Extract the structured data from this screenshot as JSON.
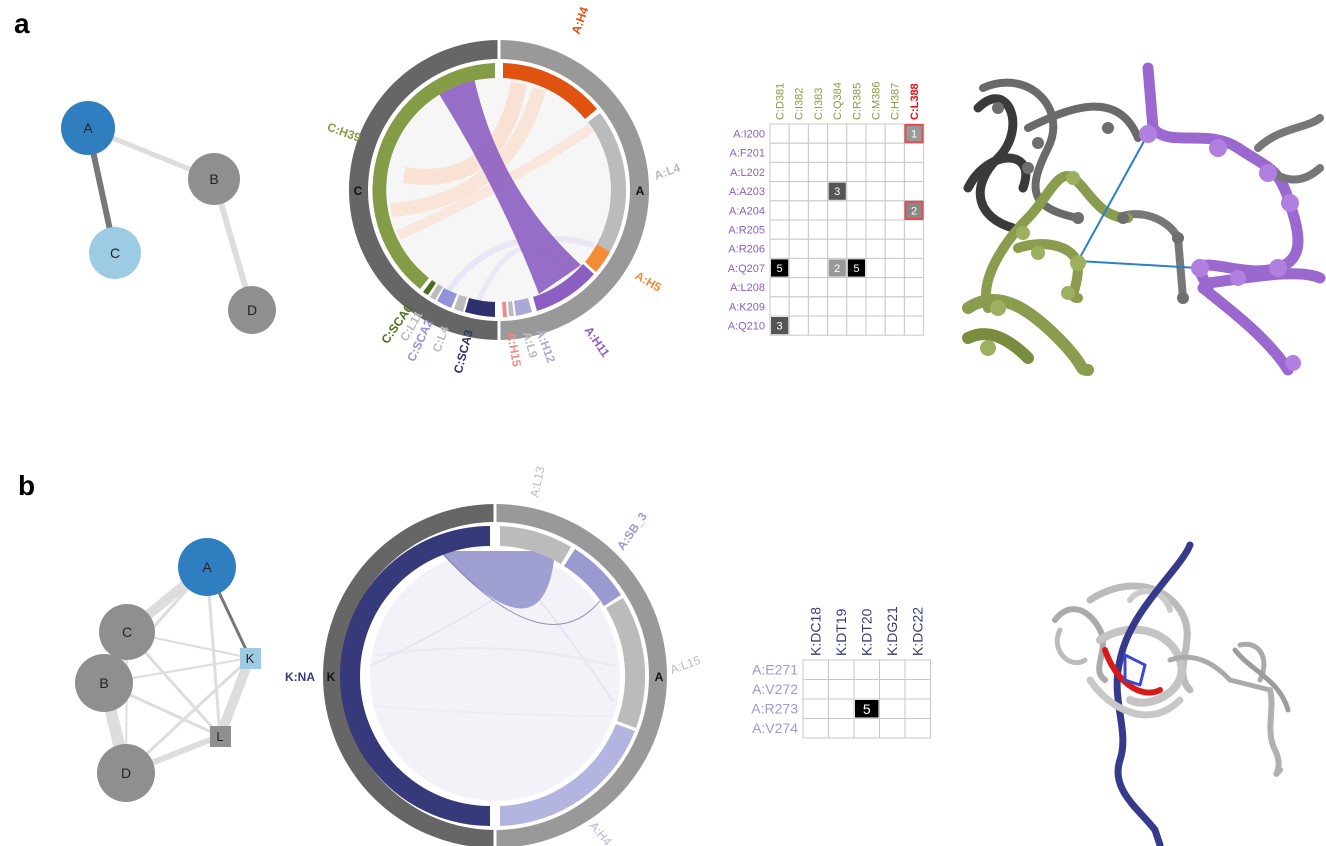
{
  "panels": [
    {
      "label": "a",
      "network": {
        "nodes": [
          {
            "id": "A",
            "color": "#2f7fc0"
          },
          {
            "id": "B",
            "color": "#8f8f8f"
          },
          {
            "id": "C",
            "color": "#9ecbe4"
          },
          {
            "id": "D",
            "color": "#8f8f8f"
          }
        ],
        "edges": [
          {
            "from": "A",
            "to": "C",
            "color": "#777777"
          },
          {
            "from": "A",
            "to": "B",
            "color": "#dddddd"
          },
          {
            "from": "B",
            "to": "D",
            "color": "#dddddd"
          }
        ]
      },
      "chord": {
        "chains": [
          {
            "name": "C",
            "color": "#666666"
          },
          {
            "name": "A",
            "color": "#999999"
          }
        ],
        "segments": [
          {
            "name": "A:H4",
            "chain": "A",
            "color": "#e0520f"
          },
          {
            "name": "A:L4",
            "chain": "A",
            "color": "#bbbbbb"
          },
          {
            "name": "A:H5",
            "chain": "A",
            "color": "#f58b35"
          },
          {
            "name": "A:H11",
            "chain": "A",
            "color": "#8c5ec2"
          },
          {
            "name": "A:H12",
            "chain": "A",
            "color": "#a9a9d6"
          },
          {
            "name": "A:L9",
            "chain": "A",
            "color": "#bbbbbb"
          },
          {
            "name": "A:H15",
            "chain": "A",
            "color": "#f08a8a"
          },
          {
            "name": "C:SCA3",
            "chain": "C",
            "color": "#2f3070"
          },
          {
            "name": "C:L4",
            "chain": "C",
            "color": "#bbbbbb"
          },
          {
            "name": "C:SCA2",
            "chain": "C",
            "color": "#8f95d6"
          },
          {
            "name": "C:L11",
            "chain": "C",
            "color": "#bbbbbb"
          },
          {
            "name": "C:SCA6",
            "chain": "C",
            "color": "#4c6e1e"
          },
          {
            "name": "C:H39",
            "chain": "C",
            "color": "#849c45"
          }
        ]
      },
      "matrix": {
        "col_labels": [
          "C:D381",
          "C:I382",
          "C:I383",
          "C:Q384",
          "C:R385",
          "C:M386",
          "C:H387",
          "C:L388"
        ],
        "col_colors": [
          "#849c45",
          "#849c45",
          "#849c45",
          "#849c45",
          "#849c45",
          "#849c45",
          "#849c45",
          "#e01010"
        ],
        "row_labels": [
          "A:I200",
          "A:F201",
          "A:L202",
          "A:A203",
          "A:A204",
          "A:R205",
          "A:R206",
          "A:Q207",
          "A:L208",
          "A:K209",
          "A:Q210"
        ],
        "row_color": "#8c5ec2",
        "cells": [
          {
            "r": 0,
            "c": 7,
            "value": "1",
            "fill": "#999999",
            "outline": "#e05050"
          },
          {
            "r": 3,
            "c": 3,
            "value": "3",
            "fill": "#555555"
          },
          {
            "r": 4,
            "c": 7,
            "value": "2",
            "fill": "#888888",
            "outline": "#e05050"
          },
          {
            "r": 7,
            "c": 0,
            "value": "5",
            "fill": "#000000"
          },
          {
            "r": 7,
            "c": 3,
            "value": "2",
            "fill": "#999999"
          },
          {
            "r": 7,
            "c": 4,
            "value": "5",
            "fill": "#000000"
          },
          {
            "r": 10,
            "c": 0,
            "value": "3",
            "fill": "#555555"
          }
        ]
      }
    },
    {
      "label": "b",
      "network": {
        "nodes": [
          {
            "id": "A",
            "color": "#2f7fc0",
            "shape": "circle"
          },
          {
            "id": "C",
            "color": "#8f8f8f",
            "shape": "circle"
          },
          {
            "id": "B",
            "color": "#8f8f8f",
            "shape": "circle"
          },
          {
            "id": "D",
            "color": "#8f8f8f",
            "shape": "circle"
          },
          {
            "id": "K",
            "color": "#9ecbe4",
            "shape": "square"
          },
          {
            "id": "L",
            "color": "#8f8f8f",
            "shape": "square"
          }
        ]
      },
      "chord": {
        "chains": [
          {
            "name": "K",
            "color": "#666666"
          },
          {
            "name": "A",
            "color": "#999999"
          }
        ],
        "segments": [
          {
            "name": "A:L13",
            "chain": "A",
            "color": "#bbbbbb"
          },
          {
            "name": "A:SB_3",
            "chain": "A",
            "color": "#9a9ad0"
          },
          {
            "name": "A:L15",
            "chain": "A",
            "color": "#bbbbbb"
          },
          {
            "name": "A:H4",
            "chain": "A",
            "color": "#b4b4e0"
          },
          {
            "name": "K:NA",
            "chain": "K",
            "color": "#363a7a"
          }
        ]
      },
      "matrix": {
        "col_labels": [
          "K:DC18",
          "K:DT19",
          "K:DT20",
          "K:DG21",
          "K:DC22"
        ],
        "col_color": "#363a7a",
        "row_labels": [
          "A:E271",
          "A:V272",
          "A:R273",
          "A:V274"
        ],
        "row_color": "#9a9ad0",
        "cells": [
          {
            "r": 2,
            "c": 2,
            "value": "5",
            "fill": "#000000"
          }
        ]
      }
    }
  ]
}
